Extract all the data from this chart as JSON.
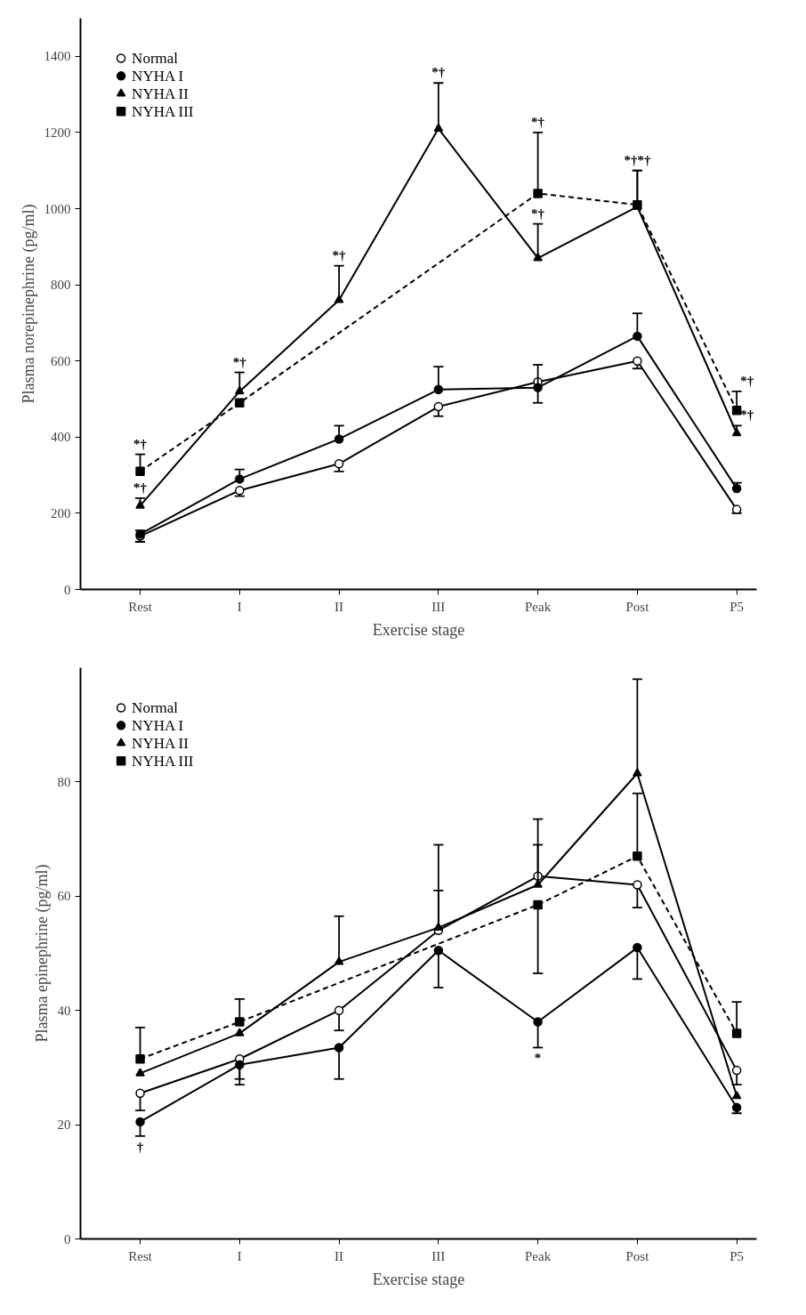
{
  "chart_data": [
    {
      "type": "line",
      "categories": [
        "Rest",
        "I",
        "II",
        "III",
        "Peak",
        "Post",
        "P5"
      ],
      "xlabel": "Exercise stage",
      "ylabel": "Plasma norepinephrine (pg/ml)",
      "ylim": [
        0,
        1500
      ],
      "yticks": [
        0,
        200,
        400,
        600,
        800,
        1000,
        1200,
        1400
      ],
      "legend": "top left",
      "grid": false,
      "series": [
        {
          "name": "Normal",
          "color": "#ffffff",
          "marker": "circle",
          "values": [
            140,
            260,
            330,
            480,
            545,
            600,
            210
          ],
          "errors": [
            [
              125,
              140
            ],
            [
              245,
              260
            ],
            [
              310,
              330
            ],
            [
              455,
              480
            ],
            [
              490,
              545
            ],
            [
              580,
              600
            ],
            [
              200,
              210
            ]
          ]
        },
        {
          "name": "NYHA I",
          "color": "#000000",
          "marker": "circle",
          "values": [
            145,
            290,
            395,
            525,
            530,
            665,
            265
          ],
          "errors": [
            [
              145,
              155
            ],
            [
              290,
              315
            ],
            [
              395,
              430
            ],
            [
              525,
              585
            ],
            [
              530,
              590
            ],
            [
              665,
              725
            ],
            [
              265,
              280
            ]
          ]
        },
        {
          "name": "NYHA II",
          "color": "#000000",
          "marker": "triangle",
          "values": [
            220,
            520,
            760,
            1210,
            870,
            1005,
            410
          ],
          "errors": [
            [
              220,
              240
            ],
            [
              520,
              570
            ],
            [
              760,
              850
            ],
            [
              1210,
              1330
            ],
            [
              870,
              960
            ],
            [
              1005,
              1100
            ],
            [
              410,
              430
            ]
          ]
        },
        {
          "name": "NYHA III",
          "color": "#000000",
          "marker": "square",
          "line_style": "dashed",
          "values": [
            310,
            490,
            null,
            null,
            1040,
            1010,
            470
          ],
          "errors": [
            [
              310,
              355
            ],
            null,
            null,
            null,
            [
              1040,
              1200
            ],
            [
              1010,
              1100
            ],
            [
              470,
              520
            ]
          ]
        }
      ],
      "annotations": [
        {
          "text": "*†",
          "x": "Rest",
          "y": 355
        },
        {
          "text": "*†",
          "x": "Rest",
          "y": 240
        },
        {
          "text": "*†",
          "x": "I",
          "y": 570
        },
        {
          "text": "*†",
          "x": "II",
          "y": 850
        },
        {
          "text": "*†",
          "x": "III",
          "y": 1330
        },
        {
          "text": "*†",
          "x": "Peak",
          "y": 1200
        },
        {
          "text": "*†",
          "x": "Peak",
          "y": 960
        },
        {
          "text": "*†*†",
          "x": "Post",
          "y": 1100
        },
        {
          "text": "*†",
          "x": "P5",
          "y": 520
        },
        {
          "text": "*†",
          "x": "P5",
          "y": 430
        }
      ]
    },
    {
      "type": "line",
      "categories": [
        "Rest",
        "I",
        "II",
        "III",
        "Peak",
        "Post",
        "P5"
      ],
      "xlabel": "Exercise stage",
      "ylabel": "Plasma epinephrine (pg/ml)",
      "ylim": [
        0,
        100
      ],
      "yticks": [
        0,
        20,
        40,
        60,
        80
      ],
      "legend": "top left",
      "grid": false,
      "series": [
        {
          "name": "Normal",
          "color": "#ffffff",
          "marker": "circle",
          "values": [
            25.5,
            31.5,
            40,
            54,
            63.5,
            62,
            29.5
          ],
          "errors": [
            [
              22.5,
              25.5
            ],
            [
              28,
              31.5
            ],
            [
              36.5,
              40
            ],
            [
              54,
              61
            ],
            [
              63.5,
              69
            ],
            [
              58,
              62
            ],
            [
              27,
              29.5
            ]
          ]
        },
        {
          "name": "NYHA I",
          "color": "#000000",
          "marker": "circle",
          "values": [
            20.5,
            30.5,
            33.5,
            50.5,
            38,
            51,
            23
          ],
          "errors": [
            [
              18,
              20.5
            ],
            [
              27,
              30.5
            ],
            [
              28,
              33.5
            ],
            [
              44,
              50.5
            ],
            [
              33.5,
              38
            ],
            [
              45.5,
              51
            ],
            [
              22,
              23
            ]
          ]
        },
        {
          "name": "NYHA II",
          "color": "#000000",
          "marker": "triangle",
          "values": [
            29,
            36,
            48.5,
            54.5,
            62,
            81.5,
            25
          ],
          "errors": [
            null,
            null,
            [
              48.5,
              56.5
            ],
            [
              54.5,
              69
            ],
            [
              62,
              73.5
            ],
            [
              81.5,
              98
            ],
            null
          ]
        },
        {
          "name": "NYHA III",
          "color": "#000000",
          "marker": "square",
          "line_style": "dashed",
          "values": [
            31.5,
            38,
            null,
            null,
            58.5,
            67,
            36
          ],
          "errors": [
            [
              31.5,
              37
            ],
            [
              38,
              42
            ],
            null,
            null,
            [
              46.5,
              58.5
            ],
            [
              67,
              78
            ],
            [
              36,
              41.5
            ]
          ]
        }
      ],
      "annotations": [
        {
          "text": "†",
          "x": "Rest",
          "y": 18
        },
        {
          "text": "*",
          "x": "Peak",
          "y": 33.5
        }
      ]
    }
  ]
}
